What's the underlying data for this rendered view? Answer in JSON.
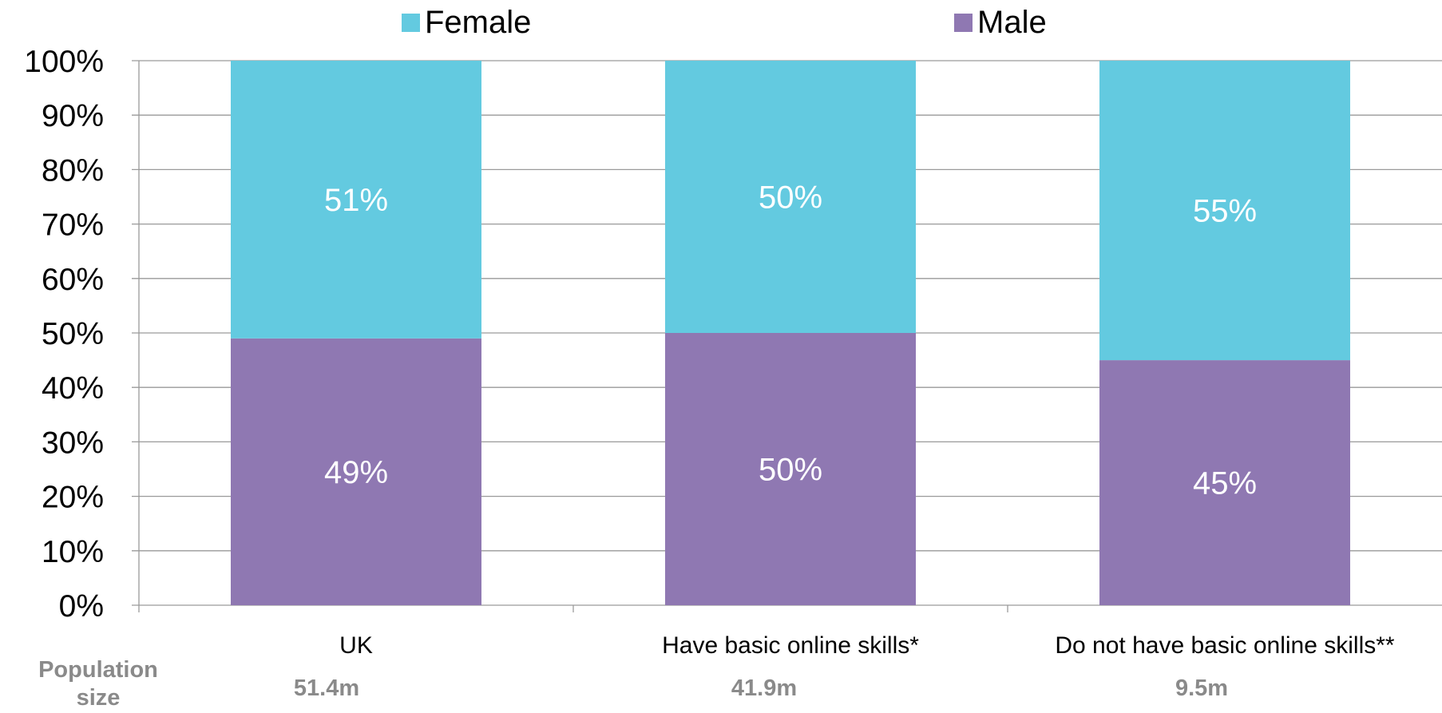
{
  "legend": {
    "female_label": "Female",
    "male_label": "Male"
  },
  "population": {
    "label": "Population size",
    "values": [
      "51.4m",
      "41.9m",
      "9.5m"
    ]
  },
  "colors": {
    "female": "#63cae0",
    "male": "#8f78b2",
    "grid": "#9a9a9a",
    "label_in_bar": "#ffffff",
    "population_text": "#8a8a8a"
  },
  "chart_data": {
    "type": "bar",
    "stacked": true,
    "categories": [
      "UK",
      "Have basic online skills*",
      "Do not have basic online skills**"
    ],
    "series": [
      {
        "name": "Male",
        "values": [
          49,
          50,
          45
        ],
        "labels": [
          "49%",
          "50%",
          "45%"
        ]
      },
      {
        "name": "Female",
        "values": [
          51,
          50,
          55
        ],
        "labels": [
          "51%",
          "50%",
          "55%"
        ]
      }
    ],
    "ylim": [
      0,
      100
    ],
    "yticks": [
      "0%",
      "10%",
      "20%",
      "30%",
      "40%",
      "50%",
      "60%",
      "70%",
      "80%",
      "90%",
      "100%"
    ],
    "grid": true,
    "legend_position": "top"
  }
}
